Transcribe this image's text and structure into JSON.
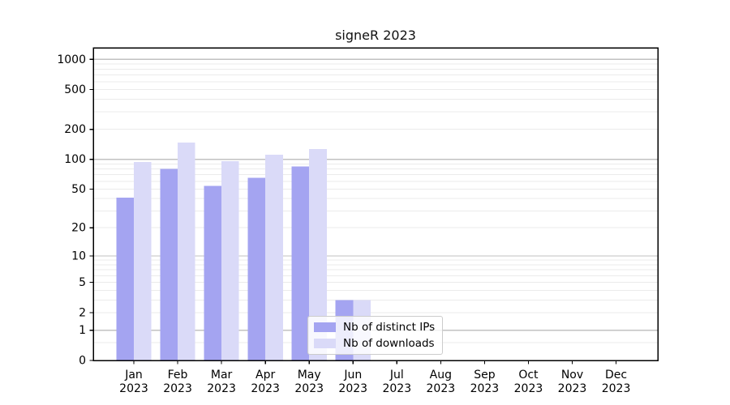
{
  "chart_data": {
    "type": "bar",
    "title": "signeR 2023",
    "year": "2023",
    "months": [
      "Jan",
      "Feb",
      "Mar",
      "Apr",
      "May",
      "Jun",
      "Jul",
      "Aug",
      "Sep",
      "Oct",
      "Nov",
      "Dec"
    ],
    "series": [
      {
        "name": "Nb of distinct IPs",
        "color": "#a4a4f1",
        "values": [
          41,
          80,
          54,
          65,
          85,
          3,
          0,
          0,
          0,
          0,
          0,
          0
        ]
      },
      {
        "name": "Nb of downloads",
        "color": "#dadaf8",
        "values": [
          94,
          147,
          96,
          111,
          127,
          3,
          0,
          0,
          0,
          0,
          0,
          0
        ]
      }
    ],
    "yscale": "log1p",
    "ylim": [
      0,
      1300
    ],
    "ytick_labels": [
      0,
      1,
      2,
      5,
      10,
      20,
      50,
      100,
      200,
      500,
      1000
    ],
    "major_gridline_values": [
      1,
      10,
      100,
      1000
    ],
    "minor_gridline_values": [
      0.5,
      2,
      3,
      4,
      5,
      6,
      7,
      8,
      9,
      20,
      30,
      40,
      50,
      60,
      70,
      80,
      90,
      200,
      300,
      400,
      500,
      600,
      700,
      800,
      900
    ],
    "grid": "on",
    "legend_position": "inside-bottom-center",
    "colors": {
      "major_grid": "#c2c2c2",
      "minor_grid": "#ebebeb",
      "axis": "#000000",
      "background": "#ffffff"
    }
  }
}
